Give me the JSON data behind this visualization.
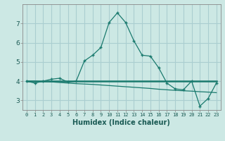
{
  "xlabel": "Humidex (Indice chaleur)",
  "ylabel": "",
  "background_color": "#cce8e4",
  "grid_color": "#aaced0",
  "line_color": "#1a7a6e",
  "x": [
    0,
    1,
    2,
    3,
    4,
    5,
    6,
    7,
    8,
    9,
    10,
    11,
    12,
    13,
    14,
    15,
    16,
    17,
    18,
    19,
    20,
    21,
    22,
    23
  ],
  "series1": [
    4.0,
    3.9,
    4.0,
    4.1,
    4.15,
    3.95,
    4.0,
    5.05,
    5.35,
    5.75,
    7.05,
    7.55,
    7.05,
    6.1,
    5.35,
    5.3,
    4.7,
    3.9,
    3.6,
    3.55,
    4.0,
    2.7,
    3.1,
    3.9
  ],
  "series2": [
    4.0,
    4.0,
    4.0,
    4.0,
    4.0,
    4.0,
    4.0,
    4.0,
    4.0,
    4.0,
    4.0,
    4.0,
    4.0,
    4.0,
    4.0,
    4.0,
    4.0,
    4.0,
    4.0,
    4.0,
    4.0,
    4.0,
    4.0,
    4.0
  ],
  "series3": [
    4.0,
    4.0,
    3.98,
    3.96,
    3.93,
    3.9,
    3.87,
    3.85,
    3.83,
    3.8,
    3.77,
    3.74,
    3.71,
    3.68,
    3.65,
    3.62,
    3.58,
    3.55,
    3.52,
    3.5,
    3.48,
    3.45,
    3.43,
    3.4
  ],
  "ylim": [
    2.5,
    8.0
  ],
  "yticks": [
    3,
    4,
    5,
    6,
    7
  ],
  "xlim": [
    -0.5,
    23.5
  ],
  "xticks": [
    0,
    1,
    2,
    3,
    4,
    5,
    6,
    7,
    8,
    9,
    10,
    11,
    12,
    13,
    14,
    15,
    16,
    17,
    18,
    19,
    20,
    21,
    22,
    23
  ]
}
